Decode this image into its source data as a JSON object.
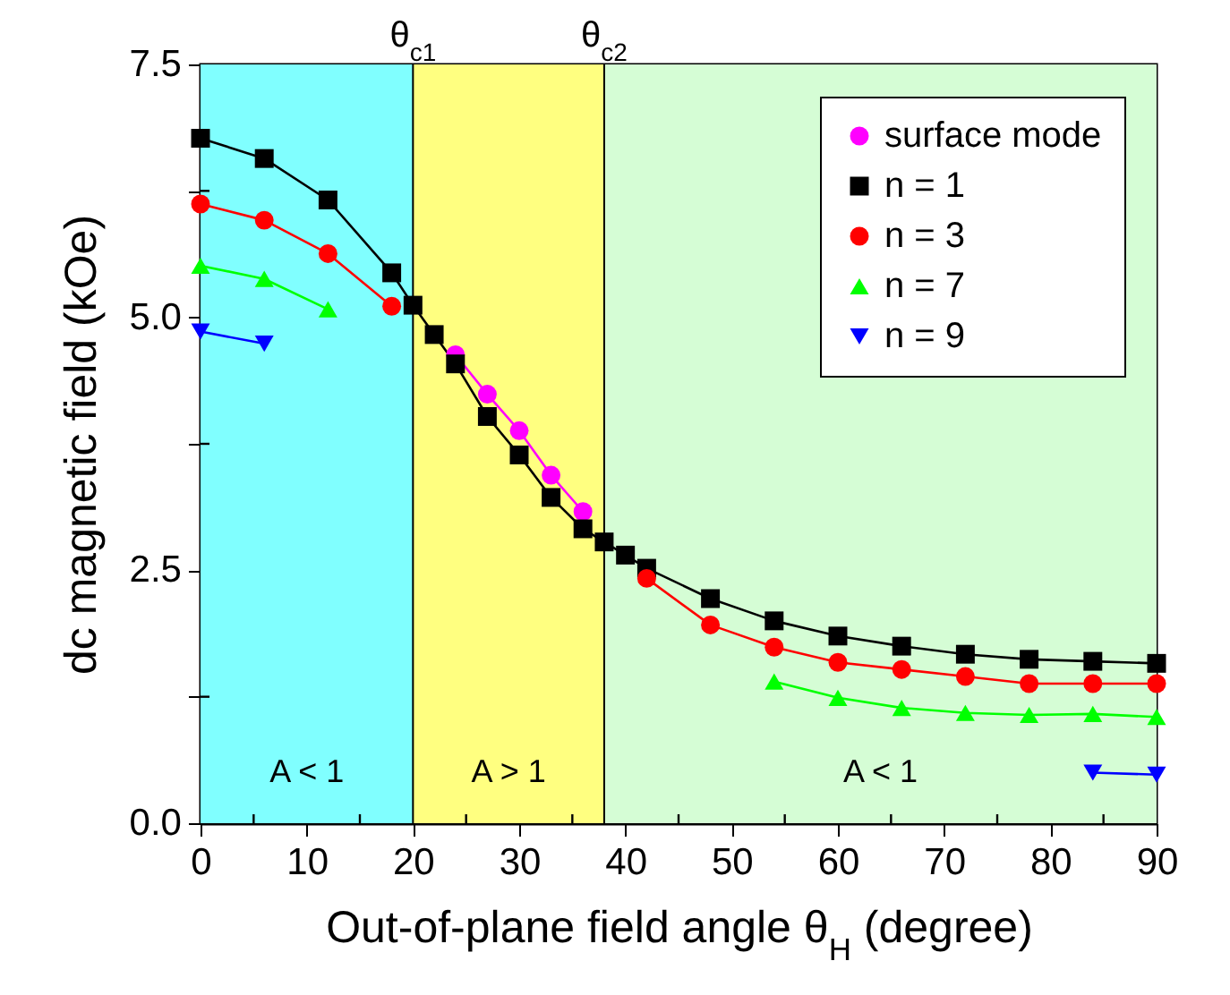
{
  "chart_data": {
    "type": "line",
    "xlabel": "Out-of-plane field angle θ$_{H}$ (degree)",
    "ylabel": "dc magnetic field (kOe)",
    "xlim": [
      0,
      90
    ],
    "xticks": [
      0,
      {
        "value": 5,
        "label": null
      },
      10,
      {
        "value": 15,
        "label": null
      },
      20,
      {
        "value": 25,
        "label": null
      },
      30,
      {
        "value": 35,
        "label": null
      },
      40,
      {
        "value": 45,
        "label": null
      },
      50,
      {
        "value": 55,
        "label": null
      },
      60,
      {
        "value": 65,
        "label": null
      },
      70,
      {
        "value": 75,
        "label": null
      },
      80,
      {
        "value": 85,
        "label": null
      },
      90
    ],
    "ylim": [
      0,
      7.5
    ],
    "yticks": [
      {
        "value": 0,
        "label": "0.0"
      },
      {
        "value": 1.25,
        "label": null
      },
      {
        "value": 2.5,
        "label": "2.5"
      },
      {
        "value": 3.75,
        "label": null
      },
      {
        "value": 5,
        "label": "5.0"
      },
      {
        "value": 6.25,
        "label": null
      },
      {
        "value": 7.5,
        "label": "7.5"
      }
    ],
    "legend": "top right",
    "series": [
      {
        "name": "surface mode",
        "color": "#ff00ff",
        "marker": "circle",
        "x": [
          24,
          27,
          30,
          33,
          36
        ],
        "values": [
          4.63,
          4.24,
          3.88,
          3.44,
          3.08
        ]
      },
      {
        "name": "n = 1",
        "color": "#000000",
        "marker": "square",
        "x": [
          0,
          6,
          12,
          18,
          20,
          22,
          24,
          27,
          30,
          33,
          36,
          38,
          40,
          42,
          48,
          54,
          60,
          66,
          72,
          78,
          84,
          90
        ],
        "values": [
          6.77,
          6.57,
          6.16,
          5.44,
          5.12,
          4.83,
          4.54,
          4.02,
          3.64,
          3.22,
          2.91,
          2.78,
          2.65,
          2.52,
          2.22,
          2.0,
          1.85,
          1.75,
          1.67,
          1.62,
          1.6,
          1.58
        ]
      },
      {
        "name": "n = 3",
        "color": "#ff0000",
        "marker": "circle",
        "x": [
          0,
          6,
          12,
          18,
          30,
          42,
          48,
          54,
          60,
          66,
          72,
          78,
          84,
          90
        ],
        "values": [
          6.12,
          5.96,
          5.63,
          5.11,
          null,
          2.42,
          1.96,
          1.74,
          1.59,
          1.52,
          1.45,
          1.38,
          1.38,
          1.38
        ]
      },
      {
        "name": "n = 7",
        "color": "#00ff00",
        "marker": "triangle",
        "x": [
          0,
          6,
          12,
          30,
          54,
          60,
          66,
          72,
          78,
          84,
          90
        ],
        "values": [
          5.51,
          5.38,
          5.08,
          null,
          1.4,
          1.24,
          1.14,
          1.09,
          1.07,
          1.08,
          1.05
        ]
      },
      {
        "name": "n = 9",
        "color": "#0000ff",
        "marker": "triangle-down",
        "x": [
          0,
          6,
          45,
          84,
          90
        ],
        "values": [
          4.86,
          4.74,
          null,
          0.5,
          0.48
        ]
      }
    ],
    "bands": [
      {
        "axis": "x",
        "from": 0,
        "to": 20,
        "label": "A < 1",
        "color": "#80ffff"
      },
      {
        "axis": "x",
        "from": 20,
        "to": 38,
        "label": "A > 1",
        "color": "#ffff80"
      },
      {
        "axis": "x",
        "from": 38,
        "to": 90,
        "label": "A < 1",
        "color": "#d5fdd5"
      }
    ],
    "ref_lines": [
      {
        "axis": "x",
        "value": 20,
        "label": "θ$_{c1}$",
        "color": "#000000"
      },
      {
        "axis": "x",
        "value": 38,
        "label": "θ$_{c2}$",
        "color": "#000000"
      }
    ]
  }
}
